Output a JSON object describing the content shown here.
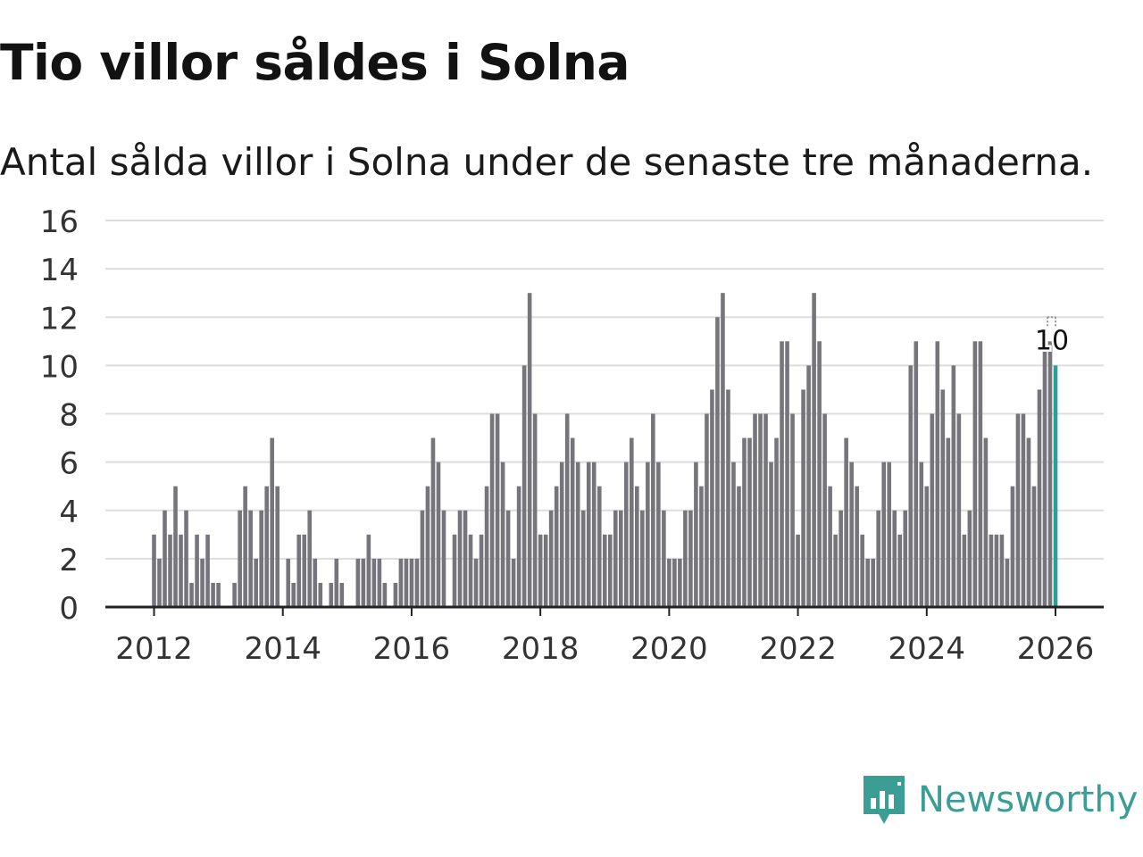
{
  "title": "Tio villor såldes i Solna",
  "subtitle": "Antal sålda villor i Solna under de senaste tre månaderna.",
  "brand": {
    "name": "Newsworthy",
    "color": "#3b9e95"
  },
  "colors": {
    "bar": "#76757c",
    "highlight": "#2c9e95",
    "grid": "#dddddd",
    "axis": "#222222"
  },
  "chart_data": {
    "type": "bar",
    "title": "Tio villor såldes i Solna",
    "subtitle": "Antal sålda villor i Solna under de senaste tre månaderna.",
    "xlabel": "",
    "ylabel": "",
    "ylim": [
      0,
      16
    ],
    "yticks": [
      0,
      2,
      4,
      6,
      8,
      10,
      12,
      14,
      16
    ],
    "xticks": [
      "2012",
      "2014",
      "2016",
      "2018",
      "2020",
      "2022",
      "2024",
      "2026"
    ],
    "x_start": "2012-01",
    "x_end": "2026-01",
    "grid": true,
    "annotation": {
      "label": "10",
      "value": 10,
      "period": "2026-01"
    },
    "series": [
      {
        "name": "Antal sålda villor",
        "values": [
          3,
          2,
          4,
          3,
          5,
          3,
          4,
          1,
          3,
          2,
          3,
          1,
          1,
          0,
          0,
          1,
          4,
          5,
          4,
          2,
          4,
          5,
          7,
          5,
          0,
          2,
          1,
          3,
          3,
          4,
          2,
          1,
          0,
          1,
          2,
          1,
          0,
          0,
          2,
          2,
          3,
          2,
          2,
          1,
          0,
          1,
          2,
          2,
          2,
          2,
          4,
          5,
          7,
          6,
          4,
          0,
          3,
          4,
          4,
          3,
          2,
          3,
          5,
          8,
          8,
          6,
          4,
          2,
          5,
          10,
          13,
          8,
          3,
          3,
          4,
          5,
          6,
          8,
          7,
          6,
          4,
          6,
          6,
          5,
          3,
          3,
          4,
          4,
          6,
          7,
          5,
          4,
          6,
          8,
          6,
          4,
          2,
          2,
          2,
          4,
          4,
          6,
          5,
          8,
          9,
          12,
          13,
          9,
          6,
          5,
          7,
          7,
          8,
          8,
          8,
          6,
          7,
          11,
          11,
          8,
          3,
          9,
          10,
          13,
          11,
          8,
          5,
          3,
          4,
          7,
          6,
          5,
          3,
          2,
          2,
          4,
          6,
          6,
          4,
          3,
          4,
          10,
          11,
          6,
          5,
          8,
          11,
          9,
          7,
          10,
          8,
          3,
          4,
          11,
          11,
          7,
          3,
          3,
          3,
          2,
          5,
          8,
          8,
          7,
          5,
          9,
          11,
          11,
          10
        ]
      }
    ]
  }
}
